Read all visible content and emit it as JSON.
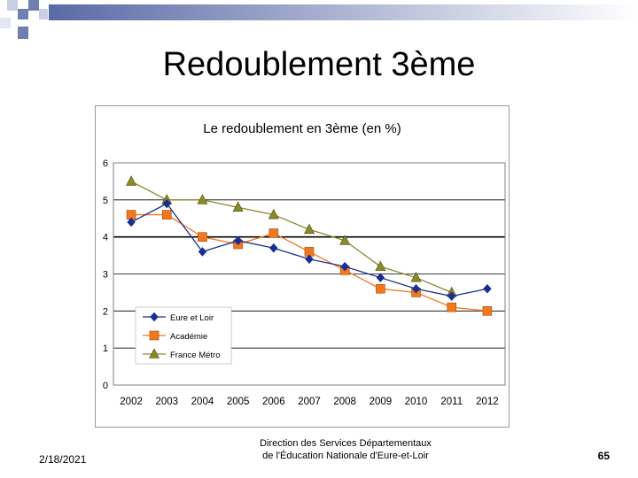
{
  "slide": {
    "title": "Redoublement 3ème",
    "date": "2/18/2021",
    "footer_line1": "Direction des Services Départementaux",
    "footer_line2": "de l'Éducation Nationale d'Eure-et-Loir",
    "page_number": "65"
  },
  "colors": {
    "eure_et_loir": "#1a2f8f",
    "academie": "#f07820",
    "france_metro": "#8a8a2a",
    "deco_blue": "#6f7fb2",
    "deco_light": "#c9cfe3"
  },
  "chart_data": {
    "type": "line",
    "title": "Le redoublement en 3ème (en %)",
    "xlabel": "",
    "ylabel": "",
    "categories": [
      "2002",
      "2003",
      "2004",
      "2005",
      "2006",
      "2007",
      "2008",
      "2009",
      "2010",
      "2011",
      "2012"
    ],
    "yticks": [
      "0",
      "1",
      "2",
      "3",
      "4",
      "5",
      "6"
    ],
    "ylim": [
      0,
      6
    ],
    "grid": true,
    "legend_position": "bottom-left",
    "series": [
      {
        "name": "Eure et Loir",
        "marker": "diamond",
        "values": [
          4.4,
          4.9,
          3.6,
          3.9,
          3.7,
          3.4,
          3.2,
          2.9,
          2.6,
          2.4,
          2.6
        ]
      },
      {
        "name": "Académie",
        "marker": "square",
        "values": [
          4.6,
          4.6,
          4.0,
          3.8,
          4.1,
          3.6,
          3.1,
          2.6,
          2.5,
          2.1,
          2.0
        ]
      },
      {
        "name": "France Métro",
        "marker": "triangle",
        "values": [
          5.5,
          5.0,
          5.0,
          4.8,
          4.6,
          4.2,
          3.9,
          3.2,
          2.9,
          2.5,
          null
        ]
      }
    ]
  }
}
